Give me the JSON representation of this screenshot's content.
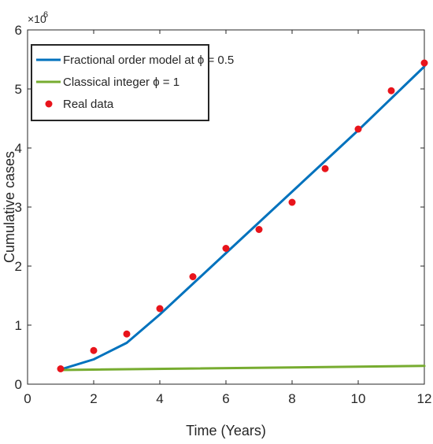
{
  "chart_data": {
    "type": "line",
    "xlabel": "Time (Years)",
    "ylabel": "Cumulative cases",
    "xlim": [
      0,
      12
    ],
    "ylim": [
      0,
      6
    ],
    "xticks": [
      0,
      2,
      4,
      6,
      8,
      10,
      12
    ],
    "yticks": [
      0,
      1,
      2,
      3,
      4,
      5,
      6
    ],
    "y_exponent": {
      "base": "×10",
      "power": "6"
    },
    "grid": false,
    "legend_position": "top-left",
    "series": [
      {
        "name": "Fractional order model at ϕ = 0.5",
        "kind": "line",
        "color": "#0072BD",
        "x": [
          1,
          2,
          3,
          4,
          5,
          6,
          7,
          8,
          9,
          10,
          11,
          12
        ],
        "y": [
          0.25,
          0.42,
          0.7,
          1.18,
          1.7,
          2.22,
          2.74,
          3.26,
          3.78,
          4.3,
          4.84,
          5.38
        ]
      },
      {
        "name": "Classical integer ϕ = 1",
        "kind": "line",
        "color": "#77AC30",
        "x": [
          1,
          12
        ],
        "y": [
          0.24,
          0.31
        ]
      },
      {
        "name": "Real data",
        "kind": "scatter",
        "color": "#E8141B",
        "x": [
          1,
          2,
          3,
          4,
          5,
          6,
          7,
          8,
          9,
          10,
          11,
          12
        ],
        "y": [
          0.26,
          0.57,
          0.85,
          1.28,
          1.82,
          2.3,
          2.62,
          3.08,
          3.65,
          4.32,
          4.97,
          5.44
        ]
      }
    ]
  }
}
